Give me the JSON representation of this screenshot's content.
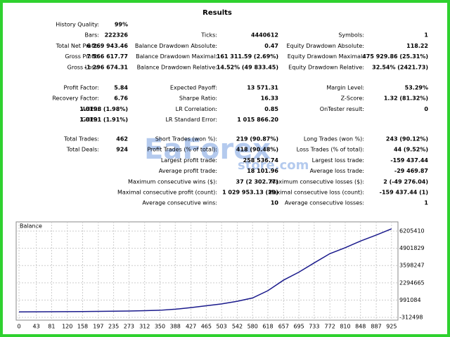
{
  "report": {
    "title": "Results",
    "groups": [
      [
        {
          "c1": {
            "label": "History Quality:",
            "value": "99%"
          }
        },
        {
          "c1": {
            "label": "Bars:",
            "value": "222326"
          },
          "c2": {
            "label": "Ticks:",
            "value": "4440612"
          },
          "c3": {
            "label": "Symbols:",
            "value": "1"
          }
        },
        {
          "c1": {
            "label": "Total Net Profit:",
            "value": "6 269 943.46"
          },
          "c2": {
            "label": "Balance Drawdown Absolute:",
            "value": "0.47"
          },
          "c3": {
            "label": "Equity Drawdown Absolute:",
            "value": "118.22"
          }
        },
        {
          "c1": {
            "label": "Gross Profit:",
            "value": "7 566 617.77"
          },
          "c2": {
            "label": "Balance Drawdown Maximal:",
            "value": "161 311.59 (2.69%)"
          },
          "c3": {
            "label": "Equity Drawdown Maximal:",
            "value": "475 929.86 (25.31%)"
          }
        },
        {
          "c1": {
            "label": "Gross Loss:",
            "value": "-1 296 674.31"
          },
          "c2": {
            "label": "Balance Drawdown Relative:",
            "value": "14.52% (49 833.45)"
          },
          "c3": {
            "label": "Equity Drawdown Relative:",
            "value": "32.54% (2421.73)"
          }
        }
      ],
      [
        {
          "c1": {
            "label": "Profit Factor:",
            "value": "5.84"
          },
          "c2": {
            "label": "Expected Payoff:",
            "value": "13 571.31"
          },
          "c3": {
            "label": "Margin Level:",
            "value": "53.29%"
          }
        },
        {
          "c1": {
            "label": "Recovery Factor:",
            "value": "6.76"
          },
          "c2": {
            "label": "Sharpe Ratio:",
            "value": "16.33"
          },
          "c3": {
            "label": "Z-Score:",
            "value": "1.32 (81.32%)"
          }
        },
        {
          "c1": {
            "label": "AHPR:",
            "value": "1.0198 (1.98%)"
          },
          "c2": {
            "label": "LR Correlation:",
            "value": "0.85"
          },
          "c3": {
            "label": "OnTester result:",
            "value": "0"
          }
        },
        {
          "c1": {
            "label": "GHPR:",
            "value": "1.0191 (1.91%)"
          },
          "c2": {
            "label": "LR Standard Error:",
            "value": "1 015 866.20"
          }
        }
      ],
      [
        {
          "c1": {
            "label": "Total Trades:",
            "value": "462"
          },
          "c2": {
            "label": "Short Trades (won %):",
            "value": "219 (90.87%)"
          },
          "c3": {
            "label": "Long Trades (won %):",
            "value": "243 (90.12%)"
          }
        },
        {
          "c1": {
            "label": "Total Deals:",
            "value": "924"
          },
          "c2": {
            "label": "Profit Trades (% of total):",
            "value": "418 (90.48%)"
          },
          "c3": {
            "label": "Loss Trades (% of total):",
            "value": "44 (9.52%)"
          }
        },
        {
          "c2": {
            "label": "Largest profit trade:",
            "value": "258 536.74"
          },
          "c3": {
            "label": "Largest loss trade:",
            "value": "-159 437.44"
          }
        },
        {
          "c2": {
            "label": "Average profit trade:",
            "value": "18 101.96"
          },
          "c3": {
            "label": "Average loss trade:",
            "value": "-29 469.87"
          }
        },
        {
          "c2": {
            "label": "Maximum consecutive wins ($):",
            "value": "37 (2 302.77)"
          },
          "c3": {
            "label": "Maximum consecutive losses ($):",
            "value": "2 (-49 276.04)"
          }
        },
        {
          "c2": {
            "label": "Maximal consecutive profit (count):",
            "value": "1 029 953.13 (29)"
          },
          "c3": {
            "label": "Maximal consecutive loss (count):",
            "value": "-159 437.44 (1)"
          }
        },
        {
          "c2": {
            "label": "Average consecutive wins:",
            "value": "10"
          },
          "c3": {
            "label": "Average consecutive losses:",
            "value": "1"
          }
        }
      ]
    ],
    "watermark": [
      "EaForex",
      "store.com"
    ]
  },
  "chart_data": {
    "type": "line",
    "title": "Balance",
    "x": [
      0,
      43,
      81,
      120,
      158,
      197,
      235,
      273,
      312,
      350,
      388,
      427,
      465,
      503,
      542,
      580,
      618,
      657,
      695,
      733,
      772,
      810,
      848,
      887,
      925
    ],
    "series": [
      {
        "name": "Balance",
        "color": "#1a1a8c",
        "values": [
          100000,
          105000,
          110000,
          115000,
          125000,
          135000,
          150000,
          165000,
          190000,
          220000,
          300000,
          420000,
          560000,
          700000,
          900000,
          1150000,
          1700000,
          2500000,
          3100000,
          3800000,
          4500000,
          4950000,
          5450000,
          5900000,
          6370000
        ]
      }
    ],
    "xlim": [
      -7,
      941
    ],
    "xticks": [
      0,
      43,
      81,
      120,
      158,
      197,
      235,
      273,
      312,
      350,
      388,
      427,
      465,
      503,
      542,
      580,
      618,
      657,
      695,
      733,
      772,
      810,
      848,
      887,
      925
    ],
    "ylim": [
      -526000,
      6900000
    ],
    "yticks": [
      6205410,
      4901829,
      3598247,
      2294665,
      991084,
      -312498
    ],
    "grid": true
  }
}
